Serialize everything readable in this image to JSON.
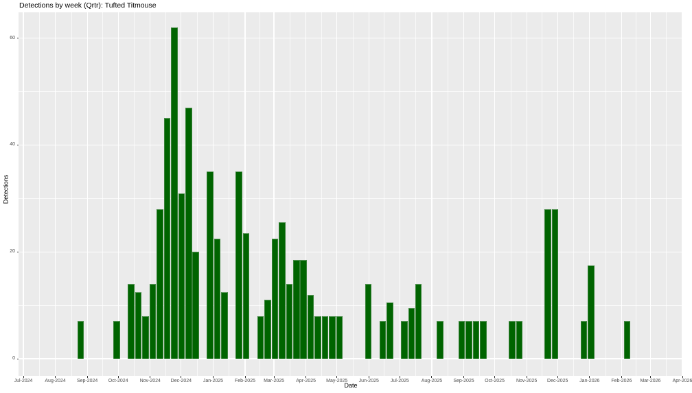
{
  "title": "Detections by week (Qrtr): Tufted Titmouse",
  "x_axis": {
    "label": "Date",
    "tick_labels": [
      "Jul-2024",
      "Aug-2024",
      "Sep-2024",
      "Oct-2024",
      "Nov-2024",
      "Dec-2024",
      "Jan-2025",
      "Feb-2025",
      "Mar-2025",
      "Apr-2025",
      "May-2025",
      "Jun-2025",
      "Jul-2025",
      "Aug-2025",
      "Sep-2025",
      "Oct-2025",
      "Nov-2025",
      "Dec-2025",
      "Jan-2026",
      "Feb-2026",
      "Mar-2026",
      "Apr-2026"
    ]
  },
  "y_axis": {
    "label": "Detections",
    "tick_labels": [
      "0",
      "20",
      "40",
      "60"
    ]
  },
  "colors": {
    "bar_fill": "#006400",
    "bar_edge_highlight": "#5a965a",
    "panel_background": "#EBEBEB",
    "gridline": "#FFFFFF",
    "tick_text": "#4D4D4D",
    "title_text": "#000000"
  },
  "chart_data": {
    "type": "bar",
    "title": "Detections by week (Qrtr): Tufted Titmouse",
    "xlabel": "Date",
    "ylabel": "Detections",
    "x_unit": "week_start_date",
    "x": [
      "2024-08-26",
      "2024-09-30",
      "2024-10-14",
      "2024-10-21",
      "2024-10-28",
      "2024-11-04",
      "2024-11-11",
      "2024-11-18",
      "2024-11-25",
      "2024-12-02",
      "2024-12-09",
      "2024-12-16",
      "2024-12-30",
      "2025-01-06",
      "2025-01-13",
      "2025-01-27",
      "2025-02-03",
      "2025-02-17",
      "2025-02-24",
      "2025-03-03",
      "2025-03-10",
      "2025-03-17",
      "2025-03-24",
      "2025-03-31",
      "2025-04-07",
      "2025-04-14",
      "2025-04-21",
      "2025-04-28",
      "2025-05-05",
      "2025-06-02",
      "2025-06-16",
      "2025-06-23",
      "2025-07-07",
      "2025-07-14",
      "2025-07-21",
      "2025-08-11",
      "2025-09-01",
      "2025-09-08",
      "2025-09-15",
      "2025-09-22",
      "2025-10-20",
      "2025-10-27",
      "2025-11-24",
      "2025-12-01",
      "2025-12-29",
      "2026-01-05",
      "2026-02-09"
    ],
    "values": [
      7,
      7,
      14,
      12.5,
      8,
      14,
      28,
      45,
      62,
      31,
      47,
      20,
      35,
      22.5,
      12.5,
      35,
      23.5,
      8,
      11,
      22.5,
      25.5,
      14,
      18.5,
      18.5,
      12,
      8,
      8,
      8,
      8,
      14,
      7,
      10.5,
      7,
      9.5,
      14,
      7,
      7,
      7,
      7,
      7,
      7,
      7,
      28,
      28,
      7,
      17.5,
      7
    ],
    "x_range": [
      "2024-07-01",
      "2026-04-01"
    ],
    "ylim": [
      0,
      62
    ],
    "yticks": [
      0,
      20,
      40,
      60
    ],
    "grid": true,
    "legend": false
  }
}
